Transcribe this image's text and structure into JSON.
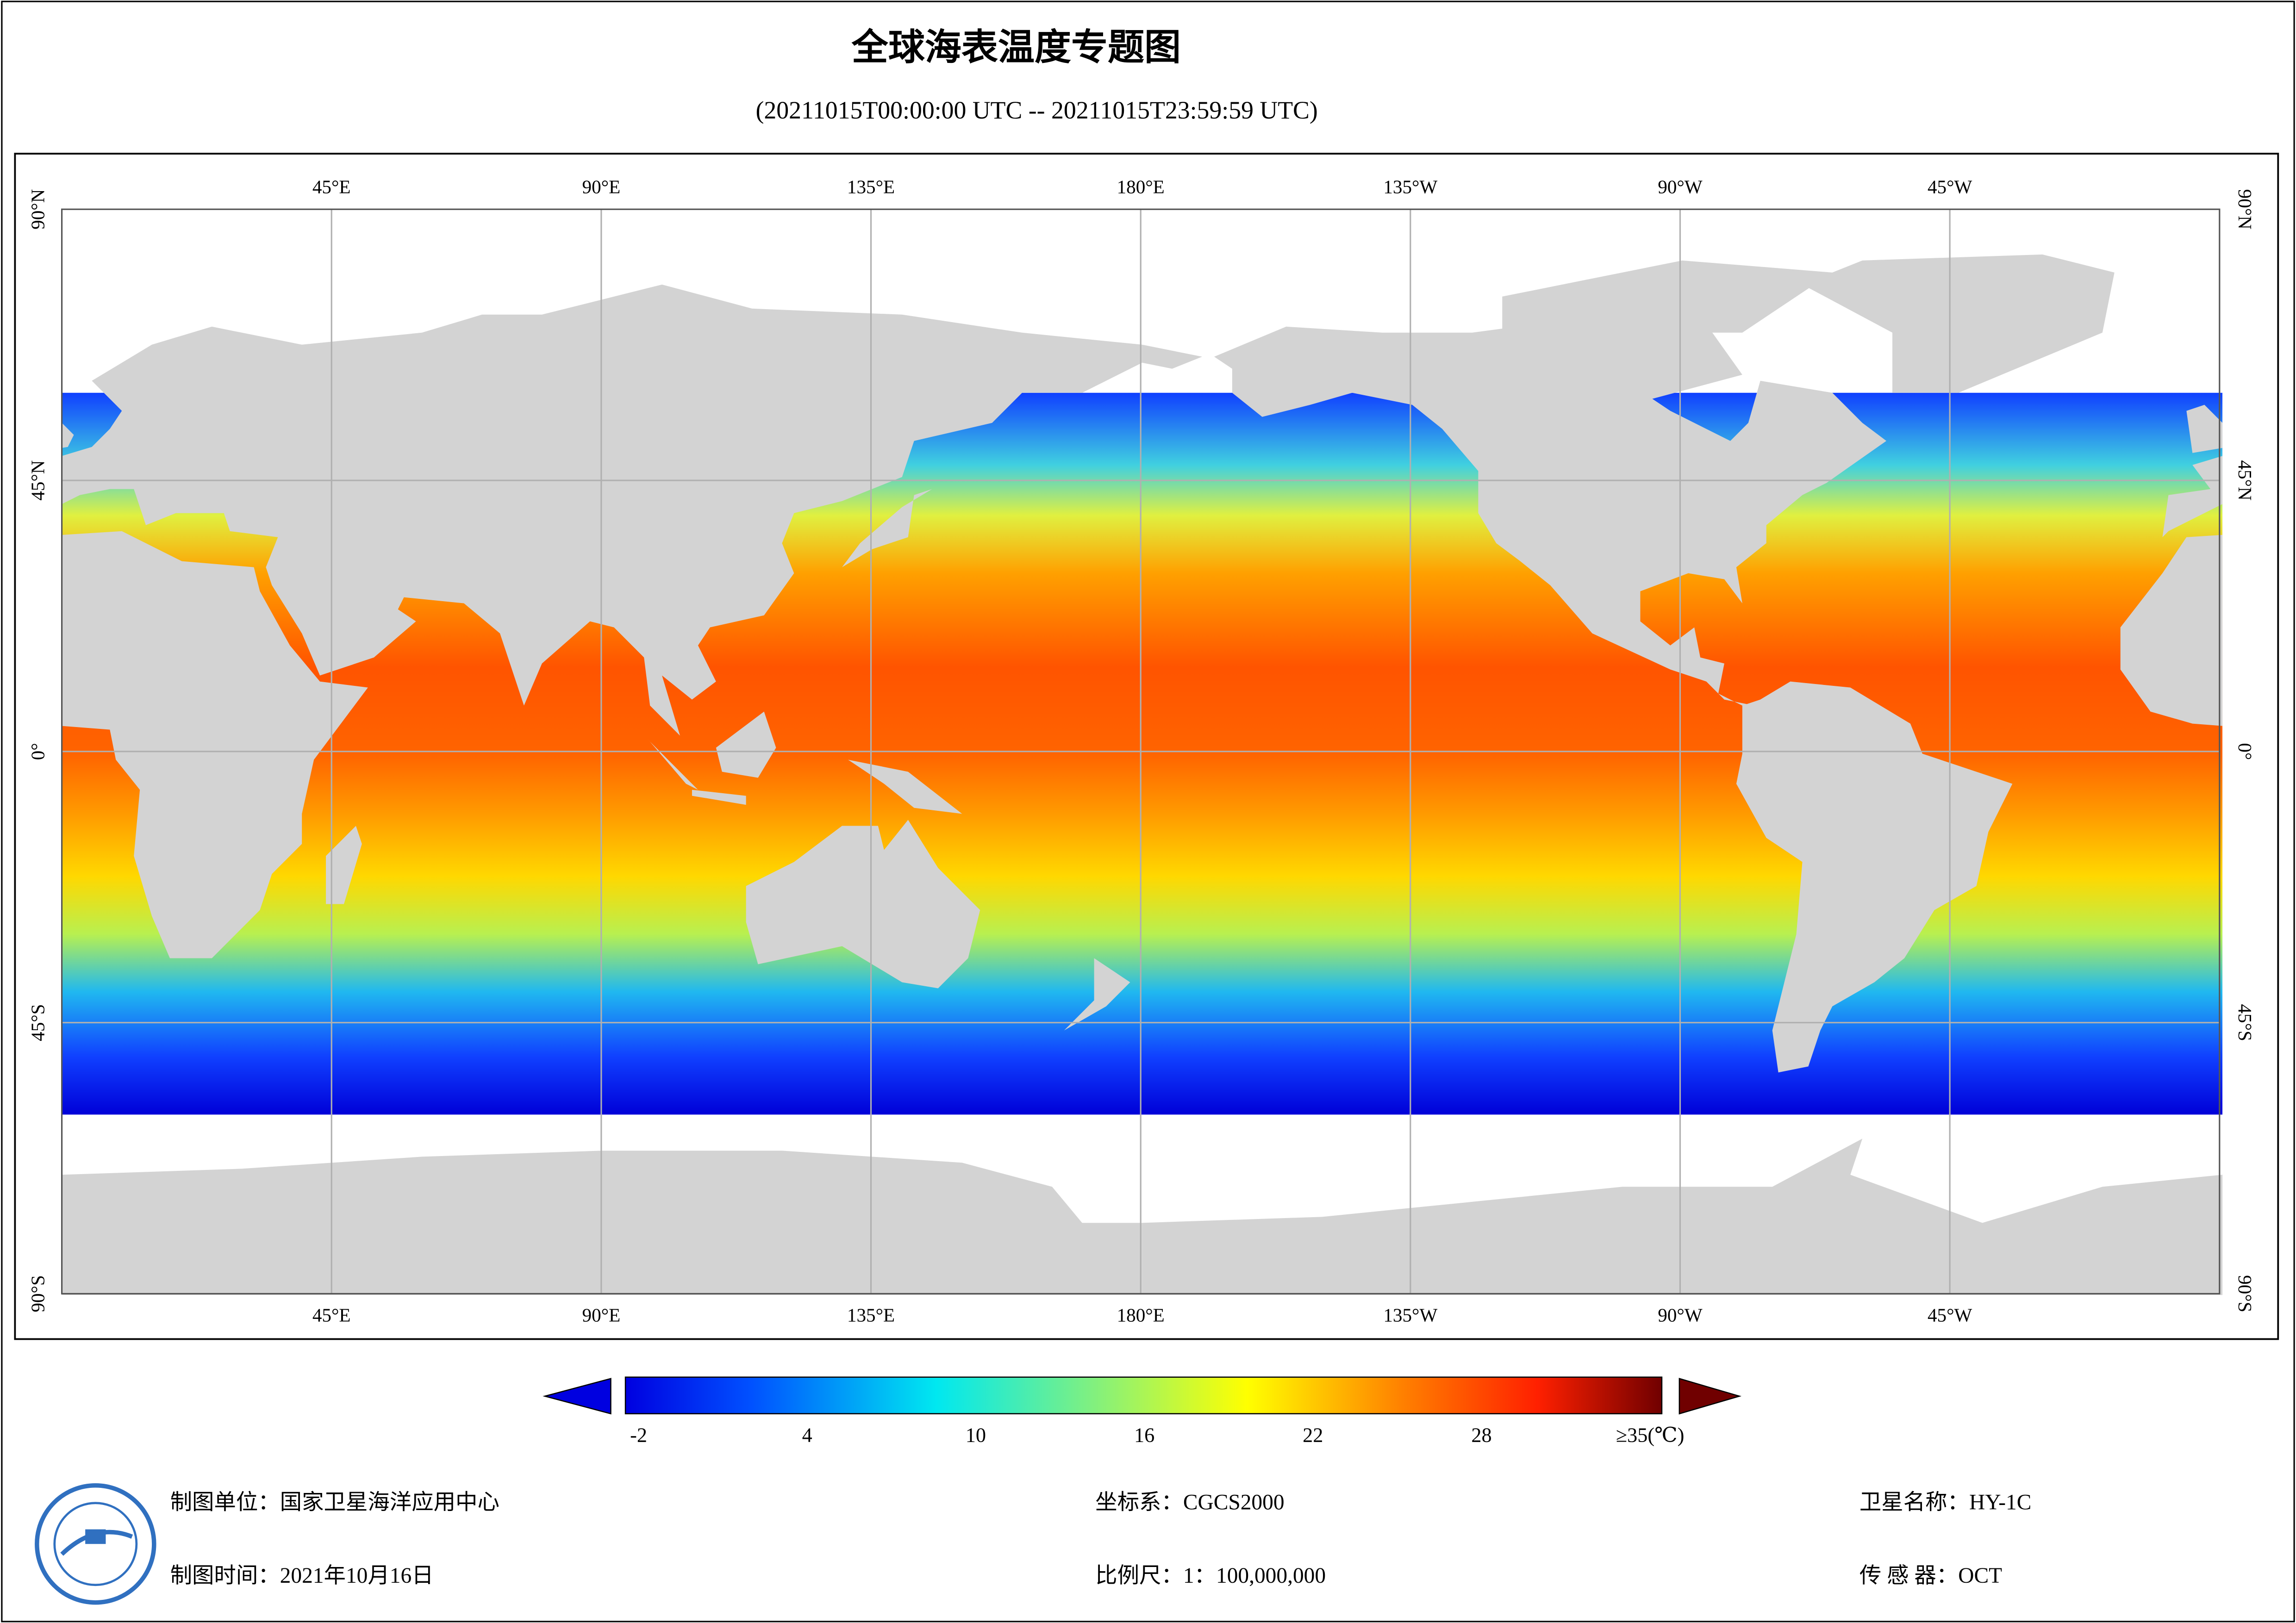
{
  "header": {
    "title": "全球海表温度专题图",
    "subtitle": "(20211015T00:00:00 UTC -- 20211015T23:59:59 UTC)"
  },
  "map": {
    "lon_labels": [
      "45°E",
      "90°E",
      "135°E",
      "180°E",
      "135°W",
      "90°W",
      "45°W"
    ],
    "lat_labels": [
      "90°N",
      "45°N",
      "0°",
      "45°S",
      "90°S"
    ]
  },
  "colorbar": {
    "labels": [
      "-2",
      "4",
      "10",
      "16",
      "22",
      "28",
      "≥35(℃)"
    ]
  },
  "footer": {
    "unit": "制图单位：国家卫星海洋应用中心",
    "time": "制图时间：2021年10月16日",
    "crs": "坐标系：CGCS2000",
    "scale": "比例尺：1：100,000,000",
    "satellite": "卫星名称：HY-1C",
    "sensor": "传 感 器：OCT"
  }
}
